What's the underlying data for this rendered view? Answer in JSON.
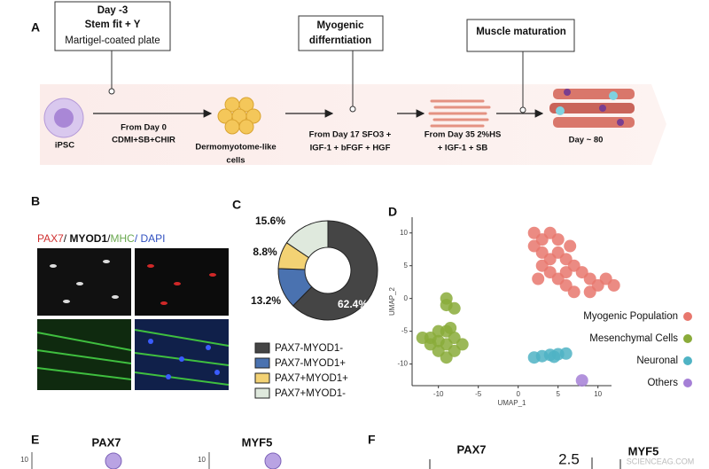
{
  "panels": {
    "a": {
      "label": "A",
      "box1": [
        "Day -3",
        "Stem fit + Y",
        "Martigel-coated plate"
      ],
      "box2": [
        "Myogenic",
        "differntiation"
      ],
      "box3": [
        "Muscle maturation"
      ],
      "steps": [
        "iPSC",
        "From Day 0",
        "CDMI+SB+CHIR",
        "Dermomyotome-like",
        "cells",
        "From Day 17 SFO3 +",
        "IGF-1 + bFGF + HGF",
        "From Day 35 2%HS",
        "+ IGF-1 + SB",
        "Day ~ 80"
      ]
    },
    "b": {
      "label": "B",
      "stain": [
        "PAX7",
        "/ ",
        "MYOD1",
        "/",
        "MHC",
        "/ DAPI"
      ]
    },
    "c": {
      "label": "C"
    },
    "d": {
      "label": "D"
    },
    "e": {
      "label": "E",
      "titles": [
        "PAX7",
        "MYF5"
      ],
      "ticks": [
        "10",
        "10"
      ]
    },
    "f": {
      "label": "F",
      "titles": [
        "PAX7",
        "MYF5"
      ],
      "tick": "2.5"
    },
    "watermark": "SCIENCEAG.COM"
  },
  "chart_data": [
    {
      "type": "pie",
      "donut": true,
      "categories": [
        "PAX7-MYOD1-",
        "PAX7-MYOD1+",
        "PAX7+MYOD1+",
        "PAX7+MYOD1-"
      ],
      "values": [
        62.4,
        13.2,
        8.8,
        15.6
      ],
      "value_labels": [
        "62.4%",
        "13.2%",
        "8.8%",
        "15.6%"
      ],
      "colors": [
        "#454545",
        "#4a72b0",
        "#f3d274",
        "#dfe9dd"
      ]
    },
    {
      "type": "scatter",
      "xlabel": "UMAP_1",
      "ylabel": "UMAP_2",
      "xlim": [
        -13.3,
        11.7
      ],
      "ylim": [
        -13.3,
        12.4
      ],
      "xticks": [
        -10,
        -5,
        0,
        5,
        10
      ],
      "yticks": [
        10,
        5,
        0,
        -5,
        -10
      ],
      "series": [
        {
          "name": "Myogenic Population",
          "color": "#e8776d",
          "x": [
            2,
            3,
            4,
            5,
            3,
            4,
            5,
            6,
            4,
            5,
            6,
            7,
            8,
            9,
            10,
            11,
            12,
            9,
            7,
            6,
            3,
            2,
            2.5,
            6.5
          ],
          "y": [
            10,
            9,
            10,
            9,
            7,
            6,
            7,
            6,
            4,
            3,
            4,
            5,
            4,
            3,
            2,
            3,
            2,
            1,
            1,
            2,
            5,
            8,
            3,
            8
          ]
        },
        {
          "name": "Mesenchymal Cells",
          "color": "#8aab3a",
          "x": [
            -9,
            -8,
            -9,
            -10,
            -9,
            -8,
            -11,
            -10,
            -9,
            -8,
            -7,
            -11,
            -12,
            -9,
            -10,
            -8.5
          ],
          "y": [
            -1,
            -1.5,
            0,
            -5,
            -5,
            -6,
            -7,
            -8,
            -9,
            -8,
            -7,
            -6,
            -6,
            -7,
            -6.5,
            -4.5
          ]
        },
        {
          "name": "Neuronal",
          "color": "#4fb3c4",
          "x": [
            2,
            3,
            4,
            5,
            6,
            4.5
          ],
          "y": [
            -9,
            -8.8,
            -8.6,
            -8.5,
            -8.4,
            -8.9
          ]
        },
        {
          "name": "Others",
          "color": "#a57fd6",
          "x": [
            8
          ],
          "y": [
            -12.5
          ]
        }
      ]
    }
  ]
}
